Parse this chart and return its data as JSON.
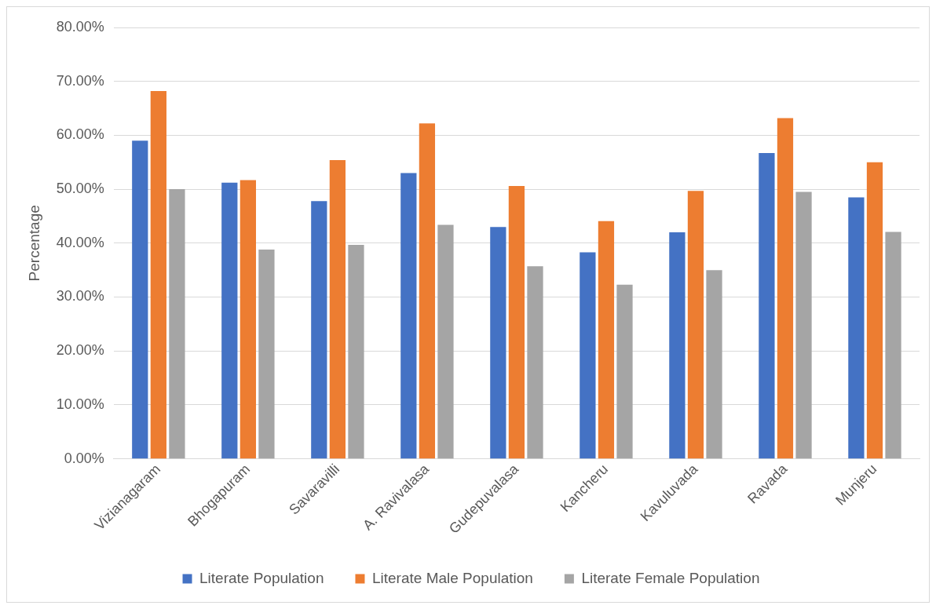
{
  "chart_data": {
    "type": "bar",
    "ylabel": "Percentage",
    "categories": [
      "Vizianagaram",
      "Bhogapuram",
      "Savaravilli",
      "A. Ravivalasa",
      "Gudepuvalasa",
      "Kancheru",
      "Kavuluvada",
      "Ravada",
      "Munjeru"
    ],
    "series": [
      {
        "name": "Literate Population",
        "color": "#4472c4",
        "values": [
          59.0,
          51.2,
          47.8,
          53.0,
          43.0,
          38.3,
          42.0,
          56.7,
          48.5
        ]
      },
      {
        "name": "Literate Male Population",
        "color": "#ed7d31",
        "values": [
          68.2,
          51.7,
          55.4,
          62.2,
          50.6,
          44.1,
          49.7,
          63.2,
          55.0
        ]
      },
      {
        "name": "Literate Female Population",
        "color": "#a5a5a5",
        "values": [
          50.0,
          38.8,
          39.7,
          43.4,
          35.7,
          32.3,
          35.0,
          49.5,
          42.1
        ]
      }
    ],
    "ylim": [
      0,
      80
    ],
    "yticks": [
      {
        "value": 0,
        "label": "0.00%"
      },
      {
        "value": 10,
        "label": "10.00%"
      },
      {
        "value": 20,
        "label": "20.00%"
      },
      {
        "value": 30,
        "label": "30.00%"
      },
      {
        "value": 40,
        "label": "40.00%"
      },
      {
        "value": 50,
        "label": "50.00%"
      },
      {
        "value": 60,
        "label": "60.00%"
      },
      {
        "value": 70,
        "label": "70.00%"
      },
      {
        "value": 80,
        "label": "80.00%"
      }
    ],
    "grid": "y",
    "legend": "bottom"
  }
}
